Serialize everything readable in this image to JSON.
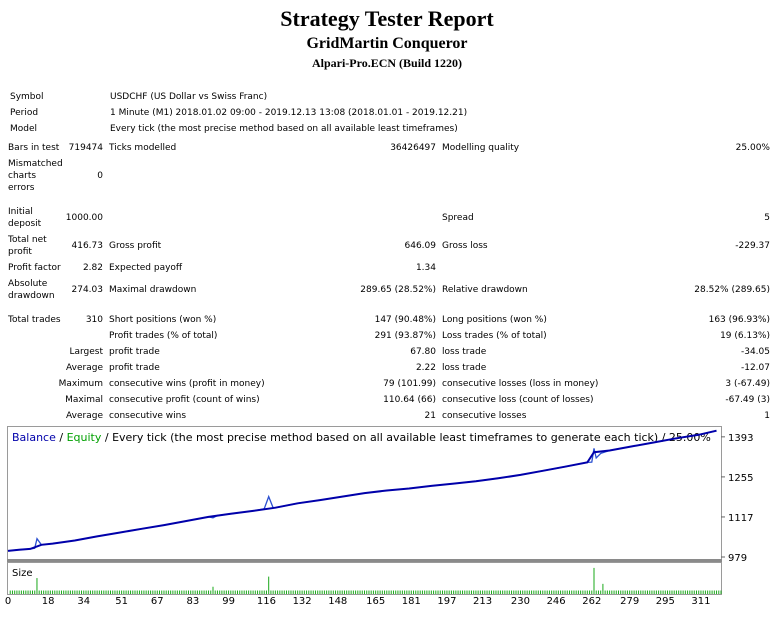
{
  "report": {
    "title": "Strategy Tester Report",
    "expert": "GridMartin Conqueror",
    "server": "Alpari-Pro.ECN (Build 1220)"
  },
  "info": {
    "symbol_label": "Symbol",
    "symbol_value": "USDCHF (US Dollar vs Swiss Franc)",
    "period_label": "Period",
    "period_value": "1 Minute (M1) 2018.01.02 09:00 - 2019.12.13 13:08 (2018.01.01 - 2019.12.21)",
    "model_label": "Model",
    "model_value": "Every tick (the most precise method based on all available least timeframes)"
  },
  "stats": {
    "bars_label": "Bars in test",
    "bars_value": "719474",
    "ticks_label": "Ticks modelled",
    "ticks_value": "36426497",
    "quality_label": "Modelling quality",
    "quality_value": "25.00%",
    "mismatch_label_1": "Mismatched",
    "mismatch_label_2": "charts",
    "mismatch_label_3": "errors",
    "mismatch_value": "0",
    "deposit_label_1": "Initial",
    "deposit_label_2": "deposit",
    "deposit_value": "1000.00",
    "spread_label": "Spread",
    "spread_value": "5",
    "netprofit_label_1": "Total net",
    "netprofit_label_2": "profit",
    "netprofit_value": "416.73",
    "grossprofit_label": "Gross profit",
    "grossprofit_value": "646.09",
    "grossloss_label": "Gross loss",
    "grossloss_value": "-229.37",
    "pf_label": "Profit factor",
    "pf_value": "2.82",
    "payoff_label": "Expected payoff",
    "payoff_value": "1.34",
    "absdd_label_1": "Absolute",
    "absdd_label_2": "drawdown",
    "absdd_value": "274.03",
    "maxdd_label": "Maximal drawdown",
    "maxdd_value": "289.65 (28.52%)",
    "reldd_label": "Relative drawdown",
    "reldd_value": "28.52% (289.65)",
    "trades_label": "Total trades",
    "trades_value": "310",
    "short_label": "Short positions (won %)",
    "short_value": "147 (90.48%)",
    "long_label": "Long positions (won %)",
    "long_value": "163 (96.93%)",
    "profit_trades_label": "Profit trades (% of total)",
    "profit_trades_value": "291 (93.87%)",
    "loss_trades_label": "Loss trades (% of total)",
    "loss_trades_value": "19 (6.13%)",
    "largest_label": "Largest",
    "largest_profit_label": "profit trade",
    "largest_profit_value": "67.80",
    "largest_loss_label": "loss trade",
    "largest_loss_value": "-34.05",
    "average_label": "Average",
    "average_profit_label": "profit trade",
    "average_profit_value": "2.22",
    "average_loss_label": "loss trade",
    "average_loss_value": "-12.07",
    "maximum_label": "Maximum",
    "max_cons_wins_label": "consecutive wins (profit in money)",
    "max_cons_wins_value": "79 (101.99)",
    "max_cons_losses_label": "consecutive losses (loss in money)",
    "max_cons_losses_value": "3 (-67.49)",
    "maximal_label": "Maximal",
    "maximal_profit_label": "consecutive profit (count of wins)",
    "maximal_profit_value": "110.64 (66)",
    "maximal_loss_label": "consecutive loss (count of losses)",
    "maximal_loss_value": "-67.49 (3)",
    "avg_cons_label": "Average",
    "avg_cons_wins_label": "consecutive wins",
    "avg_cons_wins_value": "21",
    "avg_cons_losses_label": "consecutive losses",
    "avg_cons_losses_value": "1"
  },
  "chart_legend": {
    "balance": "Balance",
    "sep1": " / ",
    "equity": "Equity",
    "rest": " / Every tick (the most precise method based on all available least timeframes to generate each tick) / 25.00%",
    "size": "Size"
  },
  "chart_data": {
    "type": "line",
    "title": "",
    "xlabel": "",
    "ylabel": "",
    "xlim": [
      0,
      320
    ],
    "ylim": [
      979,
      1420
    ],
    "yticks": [
      979,
      1117,
      1255,
      1393
    ],
    "xticks": [
      0,
      18,
      34,
      51,
      67,
      83,
      99,
      116,
      132,
      148,
      165,
      181,
      197,
      213,
      230,
      246,
      262,
      279,
      295,
      311
    ],
    "series": [
      {
        "name": "Balance",
        "color": "#0000aa",
        "x": [
          0,
          5,
          10,
          15,
          20,
          30,
          40,
          50,
          60,
          70,
          80,
          90,
          100,
          110,
          120,
          130,
          140,
          150,
          160,
          170,
          180,
          190,
          200,
          210,
          220,
          230,
          240,
          250,
          260,
          263,
          270,
          280,
          290,
          300,
          310,
          318
        ],
        "values": [
          1000,
          1004,
          1007,
          1021,
          1025,
          1036,
          1050,
          1063,
          1076,
          1089,
          1103,
          1117,
          1128,
          1138,
          1149,
          1164,
          1175,
          1187,
          1199,
          1208,
          1215,
          1224,
          1232,
          1240,
          1250,
          1262,
          1276,
          1290,
          1305,
          1340,
          1346,
          1360,
          1374,
          1388,
          1400,
          1414
        ]
      },
      {
        "name": "Equity",
        "color": "#00aa00",
        "x": [
          0,
          5,
          10,
          12,
          13,
          15,
          20,
          30,
          40,
          50,
          60,
          70,
          80,
          90,
          92,
          94,
          100,
          110,
          115,
          117,
          119,
          120,
          130,
          140,
          150,
          160,
          170,
          180,
          190,
          200,
          210,
          220,
          230,
          240,
          250,
          260,
          262,
          263,
          264,
          266,
          270,
          280,
          290,
          300,
          310,
          318
        ],
        "values": [
          1000,
          1004,
          1007,
          1009,
          1042,
          1021,
          1025,
          1036,
          1050,
          1063,
          1076,
          1089,
          1103,
          1117,
          1114,
          1122,
          1128,
          1138,
          1145,
          1187,
          1149,
          1149,
          1164,
          1175,
          1187,
          1199,
          1208,
          1215,
          1224,
          1232,
          1240,
          1250,
          1262,
          1276,
          1290,
          1305,
          1306,
          1353,
          1320,
          1336,
          1346,
          1360,
          1374,
          1388,
          1400,
          1414
        ]
      }
    ],
    "size_panel": {
      "label": "Size",
      "spikes": [
        [
          13,
          0.55
        ],
        [
          117,
          0.6
        ],
        [
          263,
          0.9
        ],
        [
          267,
          0.35
        ],
        [
          92,
          0.25
        ]
      ]
    }
  }
}
